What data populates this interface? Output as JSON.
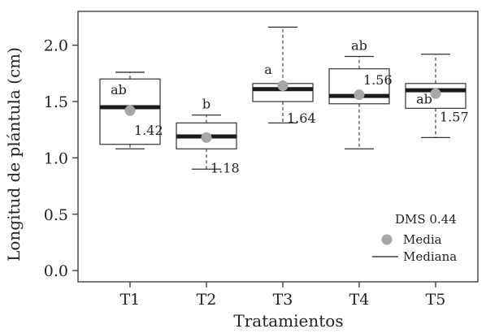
{
  "chart_data": {
    "type": "box",
    "xlabel": "Tratamientos",
    "ylabel": "Longitud de plántula (cm)",
    "ylim": [
      -0.1,
      2.3
    ],
    "yticks": [
      "0.0",
      "0.5",
      "1.0",
      "1.5",
      "2.0"
    ],
    "categories": [
      "T1",
      "T2",
      "T3",
      "T4",
      "T5"
    ],
    "boxes": [
      {
        "category": "T1",
        "whisker_low": 1.08,
        "q1": 1.12,
        "median": 1.45,
        "q3": 1.7,
        "whisker_high": 1.76,
        "mean": 1.42,
        "mean_label": "1.42",
        "letter": "ab"
      },
      {
        "category": "T2",
        "whisker_low": 0.9,
        "q1": 1.08,
        "median": 1.19,
        "q3": 1.31,
        "whisker_high": 1.38,
        "mean": 1.18,
        "mean_label": "1.18",
        "letter": "b"
      },
      {
        "category": "T3",
        "whisker_low": 1.31,
        "q1": 1.5,
        "median": 1.61,
        "q3": 1.66,
        "whisker_high": 2.16,
        "mean": 1.64,
        "mean_label": "1.64",
        "letter": "a"
      },
      {
        "category": "T4",
        "whisker_low": 1.08,
        "q1": 1.48,
        "median": 1.55,
        "q3": 1.79,
        "whisker_high": 1.9,
        "mean": 1.56,
        "mean_label": "1.56",
        "letter": "ab"
      },
      {
        "category": "T5",
        "whisker_low": 1.18,
        "q1": 1.44,
        "median": 1.6,
        "q3": 1.66,
        "whisker_high": 1.92,
        "mean": 1.57,
        "mean_label": "1.57",
        "letter": "ab"
      }
    ],
    "legend": {
      "title": "DMS 0.44",
      "mean_label": "Media",
      "median_label": "Mediana",
      "placement": "bottom-right"
    },
    "colors": {
      "mean_marker": "#a6a6a6",
      "median_line": "#1a1a1a",
      "box_stroke": "#333333",
      "axis": "#333333"
    },
    "grid": false
  }
}
